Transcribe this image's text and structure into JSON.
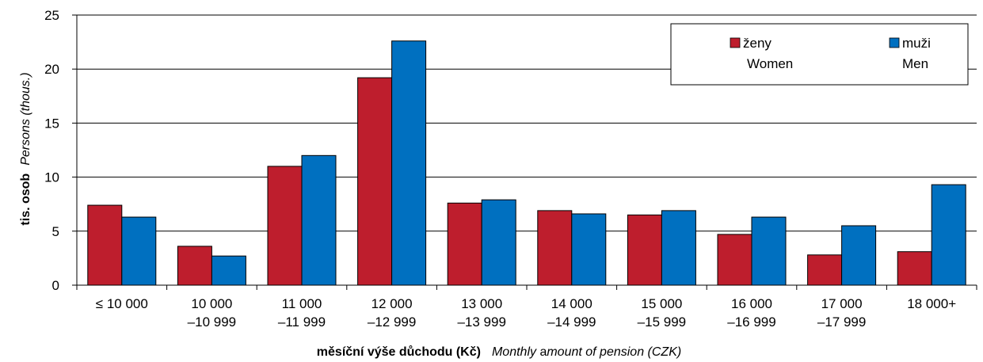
{
  "chart_data": {
    "type": "bar",
    "categories": [
      [
        "≤ 10 000",
        ""
      ],
      [
        "10 000",
        "–10 999"
      ],
      [
        "11 000",
        "–11 999"
      ],
      [
        "12 000",
        "–12 999"
      ],
      [
        "13 000",
        "–13 999"
      ],
      [
        "14 000",
        "–14 999"
      ],
      [
        "15 000",
        "–15 999"
      ],
      [
        "16 000",
        "–16 999"
      ],
      [
        "17 000",
        "–17 999"
      ],
      [
        "18 000+",
        ""
      ]
    ],
    "series": [
      {
        "name": "ženy",
        "name_en": "Women",
        "color": "#be1e2d",
        "values": [
          7.4,
          3.6,
          11.0,
          19.2,
          7.6,
          6.9,
          6.5,
          4.7,
          2.8,
          3.1
        ]
      },
      {
        "name": "muži",
        "name_en": "Men",
        "color": "#0070c0",
        "values": [
          6.3,
          2.7,
          12.0,
          22.6,
          7.9,
          6.6,
          6.9,
          6.3,
          5.5,
          9.3
        ]
      }
    ],
    "ylim": [
      0,
      25
    ],
    "yticks": [
      0,
      5,
      10,
      15,
      20,
      25
    ],
    "ylabel_bold": "tis. osob",
    "ylabel_italic": "Persons (thous.)",
    "xlabel_bold": "měsíční výše důchodu (Kč)",
    "xlabel_italic_1": "Monthly ",
    "xlabel_mid": "a",
    "xlabel_italic_2": "mount of pension (CZK)",
    "grid": true,
    "legend_position": "top-right"
  }
}
